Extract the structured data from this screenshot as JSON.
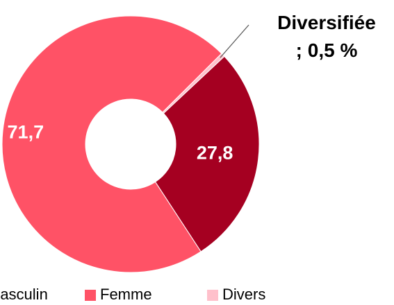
{
  "chart_data": {
    "type": "donut",
    "categories": [
      "Masculin",
      "Femme",
      "Divers"
    ],
    "values": [
      27.8,
      71.7,
      0.5
    ],
    "value_labels": [
      "27,8",
      "71,7",
      "Diversifiée ; 0,5 %"
    ],
    "colors": [
      "#a50021",
      "#ff5266",
      "#ffc0cb"
    ],
    "legend": "bottom"
  }
}
